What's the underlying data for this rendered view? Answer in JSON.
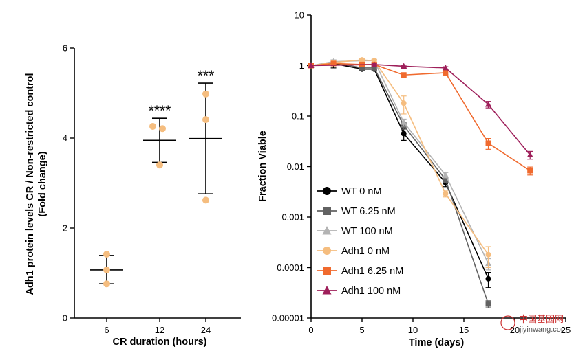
{
  "chart_data": [
    {
      "type": "scatter",
      "subtype": "dot plot with mean and SD",
      "xlabel": "CR duration (hours)",
      "ylabel": [
        "Adh1 protein levels CR / Non-restricted control",
        "(Fold change)"
      ],
      "categories": [
        "6",
        "12",
        "24"
      ],
      "ylim": [
        0,
        6
      ],
      "yticks": [
        0,
        2,
        4,
        6
      ],
      "point_color": "#F5BD7F",
      "points": [
        [
          1.42,
          1.07,
          0.76
        ],
        [
          4.26,
          4.21,
          3.4
        ],
        [
          4.98,
          4.41,
          2.62
        ]
      ],
      "mean": [
        1.07,
        3.95,
        3.99
      ],
      "sd_low": [
        0.76,
        3.46,
        2.76
      ],
      "sd_high": [
        1.39,
        4.44,
        5.22
      ],
      "significance": [
        "",
        "****",
        "***"
      ]
    },
    {
      "type": "line",
      "scale": "log",
      "xlabel": "Time (days)",
      "ylabel": "Fraction Viable",
      "xlim": [
        0,
        25
      ],
      "xticks": [
        "0",
        "5",
        "10",
        "15",
        "20",
        "25"
      ],
      "ylim": [
        1e-05,
        10
      ],
      "yticks": [
        "0.00001",
        "0.0001",
        "0.001",
        "0.01",
        "0.1",
        "1",
        "10"
      ],
      "legend_position": "bottom-left",
      "series": [
        {
          "name": "WT 0 nM",
          "color": "#000000",
          "marker": "circle",
          "x": [
            0,
            2.2,
            5,
            6.2,
            9.1,
            13.2,
            17.4
          ],
          "y": [
            1.0,
            1.1,
            0.85,
            0.85,
            0.045,
            0.0048,
            6e-05
          ],
          "err": [
            0,
            0.2,
            0.06,
            0.06,
            0.012,
            0.0008,
            2e-05
          ]
        },
        {
          "name": "WT 6.25 nM",
          "color": "#626262",
          "marker": "square",
          "x": [
            0,
            2.2,
            5,
            6.2,
            9.1,
            13.2,
            17.4
          ],
          "y": [
            1.0,
            1.15,
            0.9,
            0.9,
            0.065,
            0.0055,
            1.9e-05
          ],
          "err": [
            0,
            0.15,
            0.06,
            0.06,
            0.01,
            0.0007,
            3e-06
          ]
        },
        {
          "name": "WT 100 nM",
          "color": "#B3B3B3",
          "marker": "triangle",
          "x": [
            0,
            2.2,
            5,
            6.2,
            9.1,
            13.2,
            17.4
          ],
          "y": [
            1.0,
            1.2,
            1.25,
            1.25,
            0.075,
            0.0068,
            0.00012
          ],
          "err": [
            0,
            0.1,
            0.08,
            0.08,
            0.012,
            0.0008,
            3e-05
          ]
        },
        {
          "name": "Adh1 0 nM",
          "color": "#F5BD7F",
          "marker": "circle",
          "x": [
            0,
            2.2,
            5,
            6.2,
            9.1,
            13.2,
            17.4
          ],
          "y": [
            1.0,
            1.15,
            1.3,
            1.25,
            0.18,
            0.0029,
            0.00018
          ],
          "err": [
            0,
            0.1,
            0.08,
            0.08,
            0.07,
            0.0004,
            8e-05
          ]
        },
        {
          "name": "Adh1 6.25 nM",
          "color": "#F06A2E",
          "marker": "square",
          "x": [
            0,
            2.2,
            5,
            6.2,
            9.1,
            13.2,
            17.4,
            21.5
          ],
          "y": [
            1.0,
            1.1,
            1.05,
            1.05,
            0.65,
            0.72,
            0.029,
            0.0083
          ],
          "err": [
            0,
            0.08,
            0.06,
            0.06,
            0.05,
            0.06,
            0.007,
            0.0015
          ]
        },
        {
          "name": "Adh1 100 nM",
          "color": "#9E1F5A",
          "marker": "triangle",
          "x": [
            0,
            6.2,
            9.1,
            13.2,
            17.4,
            21.5
          ],
          "y": [
            1.0,
            1.05,
            0.97,
            0.9,
            0.17,
            0.017
          ],
          "err": [
            0,
            0.05,
            0.05,
            0.05,
            0.025,
            0.003
          ]
        }
      ]
    }
  ],
  "watermark": {
    "line1": "中国基因网",
    "line2": "jiyinwang.com"
  }
}
